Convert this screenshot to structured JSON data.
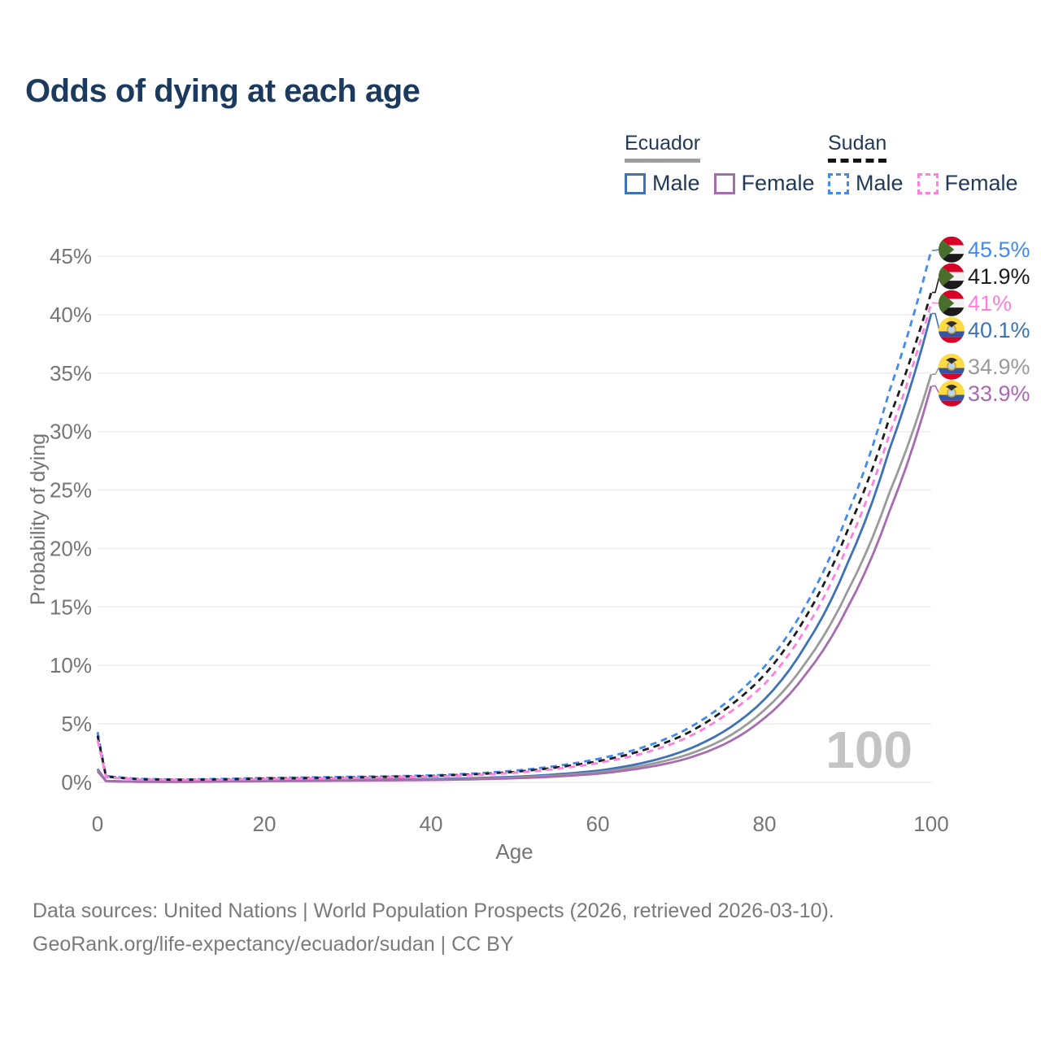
{
  "title": "Odds of dying at each age",
  "legend": {
    "groups": [
      {
        "name": "Ecuador",
        "line_style": "solid",
        "items": [
          {
            "label": "Male",
            "series": "ecuador-male"
          },
          {
            "label": "Female",
            "series": "ecuador-female"
          }
        ]
      },
      {
        "name": "Sudan",
        "line_style": "dashed",
        "items": [
          {
            "label": "Male",
            "series": "sudan-male"
          },
          {
            "label": "Female",
            "series": "sudan-female"
          }
        ]
      }
    ]
  },
  "chart_data": {
    "type": "line",
    "title": "Odds of dying at each age",
    "xlabel": "Age",
    "ylabel": "Probability of dying",
    "xlim": [
      0,
      100
    ],
    "ylim_pct": [
      0,
      45
    ],
    "x_ticks": [
      0,
      20,
      40,
      60,
      80,
      100
    ],
    "y_ticks_pct": [
      0,
      5,
      10,
      15,
      20,
      25,
      30,
      35,
      40,
      45
    ],
    "grid": "horizontal-only",
    "legend_position": "top-right",
    "hover_age_indicator": "100",
    "ages": [
      0,
      1,
      5,
      10,
      15,
      20,
      25,
      30,
      35,
      40,
      45,
      50,
      55,
      60,
      65,
      70,
      75,
      80,
      85,
      90,
      95,
      100
    ],
    "series": [
      {
        "id": "sudan-male",
        "name": "Sudan Male",
        "country": "Sudan",
        "flag": "sudan",
        "color": "#4289f0",
        "dashed": true,
        "end_label": "45.5%",
        "end_value_pct": 45.5,
        "values_pct": [
          4.3,
          0.55,
          0.3,
          0.25,
          0.3,
          0.38,
          0.42,
          0.47,
          0.52,
          0.6,
          0.75,
          1.0,
          1.4,
          2.0,
          2.9,
          4.3,
          6.6,
          9.9,
          15.2,
          23.0,
          33.5,
          45.5
        ]
      },
      {
        "id": "sudan-all",
        "name": "Sudan",
        "country": "Sudan",
        "flag": "sudan",
        "color": "#1c1c1c",
        "dashed": true,
        "end_label": "41.9%",
        "end_value_pct": 41.9,
        "values_pct": [
          4.0,
          0.5,
          0.27,
          0.22,
          0.26,
          0.33,
          0.37,
          0.42,
          0.47,
          0.55,
          0.68,
          0.9,
          1.27,
          1.8,
          2.65,
          3.95,
          6.1,
          9.2,
          14.2,
          21.6,
          31.2,
          41.9
        ]
      },
      {
        "id": "sudan-female",
        "name": "Sudan Female",
        "country": "Sudan",
        "flag": "sudan",
        "color": "#ff7ee0",
        "dashed": true,
        "end_label": "41%",
        "end_value_pct": 41.0,
        "values_pct": [
          3.6,
          0.45,
          0.25,
          0.2,
          0.23,
          0.28,
          0.32,
          0.37,
          0.43,
          0.5,
          0.62,
          0.82,
          1.15,
          1.65,
          2.4,
          3.6,
          5.6,
          8.4,
          13.2,
          20.3,
          29.8,
          41.0
        ]
      },
      {
        "id": "ecuador-male",
        "name": "Ecuador Male",
        "country": "Ecuador",
        "flag": "ecuador",
        "color": "#3d72b4",
        "dashed": false,
        "end_label": "40.1%",
        "end_value_pct": 40.1,
        "values_pct": [
          1.15,
          0.12,
          0.06,
          0.06,
          0.11,
          0.17,
          0.2,
          0.22,
          0.25,
          0.29,
          0.36,
          0.48,
          0.68,
          1.0,
          1.6,
          2.6,
          4.3,
          7.1,
          11.8,
          18.8,
          28.5,
          40.1
        ]
      },
      {
        "id": "ecuador-all",
        "name": "Ecuador",
        "country": "Ecuador",
        "flag": "ecuador",
        "color": "#9a9a9a",
        "dashed": false,
        "end_label": "34.9%",
        "end_value_pct": 34.9,
        "values_pct": [
          1.05,
          0.11,
          0.055,
          0.05,
          0.09,
          0.13,
          0.16,
          0.18,
          0.2,
          0.24,
          0.3,
          0.41,
          0.58,
          0.86,
          1.38,
          2.2,
          3.65,
          6.2,
          10.3,
          16.4,
          24.8,
          34.9
        ]
      },
      {
        "id": "ecuador-female",
        "name": "Ecuador Female",
        "country": "Ecuador",
        "flag": "ecuador",
        "color": "#a76bb0",
        "dashed": false,
        "end_label": "33.9%",
        "end_value_pct": 33.9,
        "values_pct": [
          0.95,
          0.1,
          0.05,
          0.045,
          0.07,
          0.1,
          0.12,
          0.14,
          0.17,
          0.2,
          0.26,
          0.35,
          0.5,
          0.74,
          1.18,
          1.9,
          3.2,
          5.5,
          9.3,
          15.0,
          23.2,
          33.9
        ]
      }
    ]
  },
  "colors": {
    "title_text": "#1c3a5e",
    "legend_text": "#223a57",
    "axis_text": "#757575",
    "gridline": "#ececec",
    "footer_text": "#7a7a7a",
    "watermark": "#c4c4c4",
    "ecuador_underline": "#9e9e9e",
    "sudan_underline": "#141414"
  },
  "flags": {
    "sudan": {
      "red": "#d80027",
      "white": "#f2f2f2",
      "black": "#1a1a1a",
      "green": "#496e2d"
    },
    "ecuador": {
      "yellow": "#ffda44",
      "blue": "#3355a4",
      "red": "#d80027",
      "emblem_dark": "#2f2f2f",
      "emblem_light": "#bcd4ea",
      "emblem_ring": "#c9a227"
    }
  },
  "footer": {
    "line1": "Data sources: United Nations | World Population Prospects (2026, retrieved 2026-03-10).",
    "line2": "GeoRank.org/life-expectancy/ecuador/sudan | CC BY"
  }
}
